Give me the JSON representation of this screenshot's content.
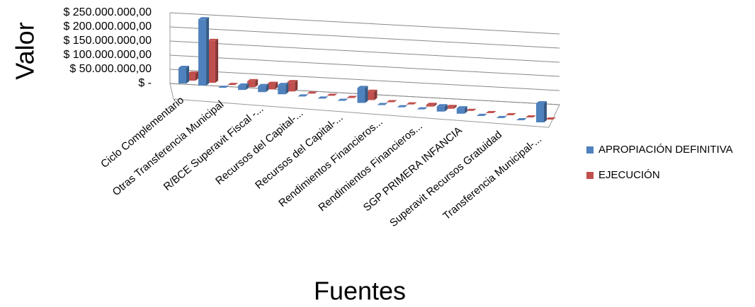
{
  "chart_data": {
    "type": "bar3d",
    "y_label": "Valor",
    "x_label": "Fuentes",
    "categories": [
      "Ciclo Complementario",
      null,
      "Otras Transferencia Municipal",
      null,
      "R/BCE Superavit Fiscal -...",
      null,
      "Recursos del Capital-...",
      null,
      "Recursos del Capital-...",
      null,
      "Rendimientos Financieros...",
      null,
      "Rendimientos Financieros...",
      null,
      "SGP PRIMERA INFANCIA",
      null,
      "Superavit Recursos Gratuidad",
      null,
      "Transferencia Municipal-..."
    ],
    "series": [
      {
        "name": "APROPIACIÓN DEFINITIVA",
        "color": "#4f81bd",
        "values": [
          55000000,
          230000000,
          0,
          15000000,
          20000000,
          30000000,
          0,
          0,
          0,
          45000000,
          0,
          0,
          0,
          15000000,
          15000000,
          0,
          0,
          0,
          50000000
        ]
      },
      {
        "name": "EJECUCIÓN",
        "color": "#c0504d",
        "values": [
          25000000,
          145000000,
          0,
          20000000,
          18000000,
          30000000,
          0,
          0,
          0,
          25000000,
          0,
          0,
          5000000,
          5000000,
          0,
          0,
          0,
          0,
          0
        ]
      }
    ],
    "ylim": [
      0,
      250000000
    ],
    "yticks": [
      {
        "value": 0,
        "label": "$ -"
      },
      {
        "value": 50000000,
        "label": "$ 50.000.000,00"
      },
      {
        "value": 100000000,
        "label": "$ 100.000.000,00"
      },
      {
        "value": 150000000,
        "label": "$ 150.000.000,00"
      },
      {
        "value": 200000000,
        "label": "$ 200.000.000,00"
      },
      {
        "value": 250000000,
        "label": "$ 250.000.000,00"
      }
    ],
    "grid": true,
    "legend": "right"
  }
}
